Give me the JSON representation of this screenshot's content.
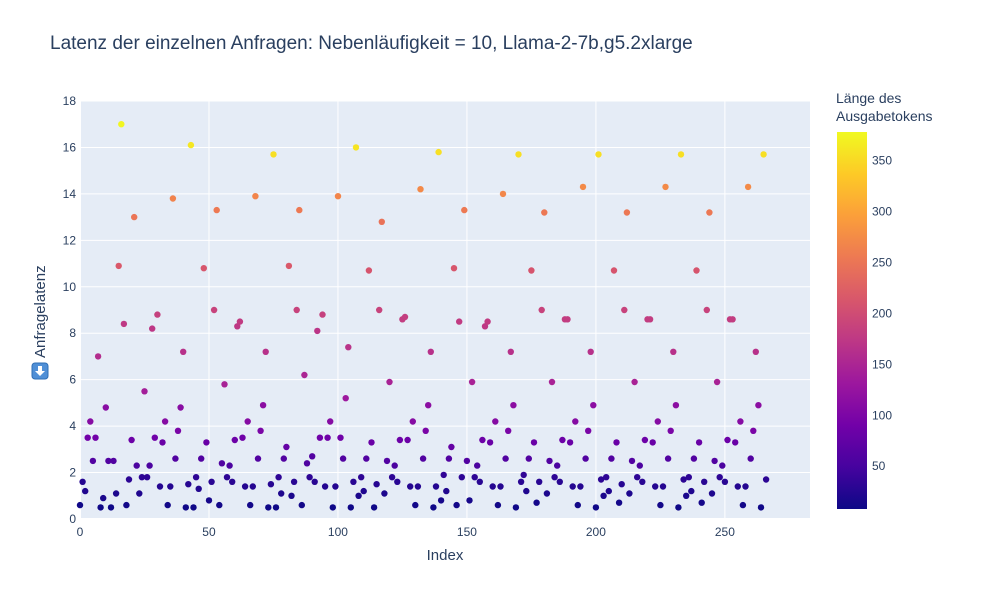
{
  "chart_data": {
    "type": "scatter",
    "title": "Latenz der einzelnen Anfragen: Nebenläufigkeit = 10, Llama-2-7b,g5.2xlarge",
    "xlabel": "Index",
    "ylabel": "Anfragelatenz",
    "ylabel_icon": "down-arrow-icon",
    "xlim": [
      0,
      283
    ],
    "ylim": [
      0,
      18
    ],
    "xticks": [
      "0",
      "50",
      "100",
      "150",
      "200",
      "250"
    ],
    "yticks": [
      "0",
      "2",
      "4",
      "6",
      "8",
      "10",
      "12",
      "14",
      "16",
      "18"
    ],
    "grid": true,
    "colorbar": {
      "title_lines": [
        "Länge des",
        "Ausgabetokens"
      ],
      "range": [
        8,
        378
      ],
      "ticks": [
        "50",
        "100",
        "150",
        "200",
        "250",
        "300",
        "350"
      ],
      "colorscale": [
        "#0d0887",
        "#46039f",
        "#7201a8",
        "#9c179e",
        "#bd3786",
        "#d8576b",
        "#ed7953",
        "#fb9f3a",
        "#fdca26",
        "#f0f921"
      ]
    },
    "points": [
      [
        0,
        0.6,
        10
      ],
      [
        1,
        1.6,
        25
      ],
      [
        2,
        1.2,
        22
      ],
      [
        3,
        3.5,
        90
      ],
      [
        4,
        4.2,
        110
      ],
      [
        5,
        2.5,
        60
      ],
      [
        6,
        3.5,
        90
      ],
      [
        7,
        7.0,
        160
      ],
      [
        8,
        0.5,
        10
      ],
      [
        9,
        0.9,
        18
      ],
      [
        10,
        4.8,
        112
      ],
      [
        11,
        2.5,
        60
      ],
      [
        12,
        0.5,
        10
      ],
      [
        13,
        2.5,
        60
      ],
      [
        14,
        1.1,
        20
      ],
      [
        15,
        10.9,
        215
      ],
      [
        16,
        17.0,
        375
      ],
      [
        17,
        8.4,
        175
      ],
      [
        18,
        0.6,
        12
      ],
      [
        19,
        1.7,
        30
      ],
      [
        20,
        3.4,
        85
      ],
      [
        21,
        13.0,
        250
      ],
      [
        22,
        2.3,
        55
      ],
      [
        23,
        1.1,
        22
      ],
      [
        24,
        1.8,
        32
      ],
      [
        25,
        5.5,
        140
      ],
      [
        26,
        1.8,
        32
      ],
      [
        27,
        2.3,
        55
      ],
      [
        28,
        8.2,
        172
      ],
      [
        29,
        3.5,
        88
      ],
      [
        30,
        8.8,
        185
      ],
      [
        31,
        1.4,
        25
      ],
      [
        32,
        3.3,
        82
      ],
      [
        33,
        4.2,
        110
      ],
      [
        34,
        0.6,
        12
      ],
      [
        35,
        1.4,
        25
      ],
      [
        36,
        13.8,
        265
      ],
      [
        37,
        2.6,
        60
      ],
      [
        38,
        3.8,
        98
      ],
      [
        39,
        4.8,
        112
      ],
      [
        40,
        7.2,
        165
      ],
      [
        41,
        0.5,
        10
      ],
      [
        42,
        1.5,
        27
      ],
      [
        43,
        16.1,
        362
      ],
      [
        44,
        0.5,
        10
      ],
      [
        45,
        1.8,
        32
      ],
      [
        46,
        1.3,
        24
      ],
      [
        47,
        2.6,
        60
      ],
      [
        48,
        10.8,
        212
      ],
      [
        49,
        3.3,
        82
      ],
      [
        50,
        0.8,
        15
      ],
      [
        51,
        1.6,
        28
      ],
      [
        52,
        9.0,
        188
      ],
      [
        53,
        13.3,
        255
      ],
      [
        54,
        0.6,
        12
      ],
      [
        55,
        2.4,
        58
      ],
      [
        56,
        5.8,
        145
      ],
      [
        57,
        1.8,
        32
      ],
      [
        58,
        2.3,
        55
      ],
      [
        59,
        1.6,
        28
      ],
      [
        60,
        3.4,
        85
      ],
      [
        61,
        8.3,
        174
      ],
      [
        62,
        8.5,
        178
      ],
      [
        63,
        3.5,
        88
      ],
      [
        64,
        1.4,
        25
      ],
      [
        65,
        4.2,
        110
      ],
      [
        66,
        0.6,
        12
      ],
      [
        67,
        1.4,
        25
      ],
      [
        68,
        13.9,
        268
      ],
      [
        69,
        2.6,
        60
      ],
      [
        70,
        3.8,
        98
      ],
      [
        71,
        4.9,
        115
      ],
      [
        72,
        7.2,
        165
      ],
      [
        73,
        0.5,
        10
      ],
      [
        74,
        1.5,
        27
      ],
      [
        75,
        15.7,
        355
      ],
      [
        76,
        0.5,
        10
      ],
      [
        77,
        1.8,
        32
      ],
      [
        78,
        1.1,
        20
      ],
      [
        79,
        2.6,
        60
      ],
      [
        80,
        3.1,
        78
      ],
      [
        81,
        10.9,
        215
      ],
      [
        82,
        1.0,
        18
      ],
      [
        83,
        1.6,
        28
      ],
      [
        84,
        9.0,
        188
      ],
      [
        85,
        13.3,
        255
      ],
      [
        86,
        0.6,
        12
      ],
      [
        87,
        6.2,
        150
      ],
      [
        88,
        2.4,
        58
      ],
      [
        89,
        1.8,
        32
      ],
      [
        90,
        2.7,
        62
      ],
      [
        91,
        1.6,
        28
      ],
      [
        92,
        8.1,
        170
      ],
      [
        93,
        3.5,
        88
      ],
      [
        94,
        8.8,
        185
      ],
      [
        95,
        1.4,
        25
      ],
      [
        96,
        3.5,
        88
      ],
      [
        97,
        4.2,
        110
      ],
      [
        98,
        0.5,
        10
      ],
      [
        99,
        1.4,
        25
      ],
      [
        100,
        13.9,
        268
      ],
      [
        101,
        3.5,
        88
      ],
      [
        102,
        2.6,
        60
      ],
      [
        103,
        5.2,
        132
      ],
      [
        104,
        7.4,
        168
      ],
      [
        105,
        0.5,
        10
      ],
      [
        106,
        1.6,
        28
      ],
      [
        107,
        16.0,
        360
      ],
      [
        108,
        1.0,
        18
      ],
      [
        109,
        1.8,
        32
      ],
      [
        110,
        1.2,
        22
      ],
      [
        111,
        2.6,
        60
      ],
      [
        112,
        10.7,
        210
      ],
      [
        113,
        3.3,
        82
      ],
      [
        114,
        0.5,
        10
      ],
      [
        115,
        1.5,
        27
      ],
      [
        116,
        9.0,
        188
      ],
      [
        117,
        12.8,
        246
      ],
      [
        118,
        1.1,
        20
      ],
      [
        119,
        2.5,
        60
      ],
      [
        120,
        5.9,
        146
      ],
      [
        121,
        1.8,
        32
      ],
      [
        122,
        2.3,
        55
      ],
      [
        123,
        1.6,
        28
      ],
      [
        124,
        3.4,
        85
      ],
      [
        125,
        8.6,
        180
      ],
      [
        126,
        8.7,
        182
      ],
      [
        127,
        3.4,
        85
      ],
      [
        128,
        1.4,
        25
      ],
      [
        129,
        4.2,
        110
      ],
      [
        130,
        0.6,
        12
      ],
      [
        131,
        1.4,
        25
      ],
      [
        132,
        14.2,
        272
      ],
      [
        133,
        2.6,
        60
      ],
      [
        134,
        3.8,
        98
      ],
      [
        135,
        4.9,
        115
      ],
      [
        136,
        7.2,
        165
      ],
      [
        137,
        0.5,
        10
      ],
      [
        138,
        1.4,
        25
      ],
      [
        139,
        15.8,
        356
      ],
      [
        140,
        0.8,
        15
      ],
      [
        141,
        1.9,
        34
      ],
      [
        142,
        1.2,
        22
      ],
      [
        143,
        2.6,
        60
      ],
      [
        144,
        3.1,
        78
      ],
      [
        145,
        10.8,
        212
      ],
      [
        146,
        0.6,
        12
      ],
      [
        147,
        8.5,
        178
      ],
      [
        148,
        1.8,
        32
      ],
      [
        149,
        13.3,
        255
      ],
      [
        150,
        2.5,
        60
      ],
      [
        151,
        0.8,
        15
      ],
      [
        152,
        5.9,
        146
      ],
      [
        153,
        1.8,
        32
      ],
      [
        154,
        2.3,
        55
      ],
      [
        155,
        1.6,
        28
      ],
      [
        156,
        3.4,
        85
      ],
      [
        157,
        8.3,
        174
      ],
      [
        158,
        8.5,
        178
      ],
      [
        159,
        3.3,
        82
      ],
      [
        160,
        1.4,
        25
      ],
      [
        161,
        4.2,
        110
      ],
      [
        162,
        0.6,
        12
      ],
      [
        163,
        1.4,
        25
      ],
      [
        164,
        14.0,
        270
      ],
      [
        165,
        2.6,
        60
      ],
      [
        166,
        3.8,
        98
      ],
      [
        167,
        7.2,
        165
      ],
      [
        168,
        4.9,
        115
      ],
      [
        169,
        0.5,
        10
      ],
      [
        170,
        15.7,
        355
      ],
      [
        171,
        1.6,
        28
      ],
      [
        172,
        1.9,
        34
      ],
      [
        173,
        1.2,
        22
      ],
      [
        174,
        2.6,
        60
      ],
      [
        175,
        10.7,
        210
      ],
      [
        176,
        3.3,
        82
      ],
      [
        177,
        0.7,
        13
      ],
      [
        178,
        1.6,
        28
      ],
      [
        179,
        9.0,
        188
      ],
      [
        180,
        13.2,
        253
      ],
      [
        181,
        1.1,
        20
      ],
      [
        182,
        2.5,
        60
      ],
      [
        183,
        5.9,
        146
      ],
      [
        184,
        1.8,
        32
      ],
      [
        185,
        2.3,
        55
      ],
      [
        186,
        1.6,
        28
      ],
      [
        187,
        3.4,
        85
      ],
      [
        188,
        8.6,
        180
      ],
      [
        189,
        8.6,
        180
      ],
      [
        190,
        3.3,
        82
      ],
      [
        191,
        1.4,
        25
      ],
      [
        192,
        4.2,
        110
      ],
      [
        193,
        0.6,
        12
      ],
      [
        194,
        1.4,
        25
      ],
      [
        195,
        14.3,
        273
      ],
      [
        196,
        2.6,
        60
      ],
      [
        197,
        3.8,
        98
      ],
      [
        198,
        7.2,
        165
      ],
      [
        199,
        4.9,
        115
      ],
      [
        200,
        0.5,
        10
      ],
      [
        201,
        15.7,
        355
      ],
      [
        202,
        1.7,
        30
      ],
      [
        203,
        1.0,
        18
      ],
      [
        204,
        1.8,
        32
      ],
      [
        205,
        1.2,
        22
      ],
      [
        206,
        2.6,
        60
      ],
      [
        207,
        10.7,
        210
      ],
      [
        208,
        3.3,
        82
      ],
      [
        209,
        0.7,
        13
      ],
      [
        210,
        1.5,
        27
      ],
      [
        211,
        9.0,
        188
      ],
      [
        212,
        13.2,
        253
      ],
      [
        213,
        1.1,
        20
      ],
      [
        214,
        2.5,
        60
      ],
      [
        215,
        5.9,
        146
      ],
      [
        216,
        1.8,
        32
      ],
      [
        217,
        2.3,
        55
      ],
      [
        218,
        1.6,
        28
      ],
      [
        219,
        3.4,
        85
      ],
      [
        220,
        8.6,
        180
      ],
      [
        221,
        8.6,
        180
      ],
      [
        222,
        3.3,
        82
      ],
      [
        223,
        1.4,
        25
      ],
      [
        224,
        4.2,
        110
      ],
      [
        225,
        0.6,
        12
      ],
      [
        226,
        1.4,
        25
      ],
      [
        227,
        14.3,
        273
      ],
      [
        228,
        2.6,
        60
      ],
      [
        229,
        3.8,
        98
      ],
      [
        230,
        7.2,
        165
      ],
      [
        231,
        4.9,
        115
      ],
      [
        232,
        0.5,
        10
      ],
      [
        233,
        15.7,
        355
      ],
      [
        234,
        1.7,
        30
      ],
      [
        235,
        1.0,
        18
      ],
      [
        236,
        1.8,
        32
      ],
      [
        237,
        1.2,
        22
      ],
      [
        238,
        2.6,
        60
      ],
      [
        239,
        10.7,
        210
      ],
      [
        240,
        3.3,
        82
      ],
      [
        241,
        0.7,
        13
      ],
      [
        242,
        1.6,
        28
      ],
      [
        243,
        9.0,
        188
      ],
      [
        244,
        13.2,
        253
      ],
      [
        245,
        1.1,
        20
      ],
      [
        246,
        2.5,
        60
      ],
      [
        247,
        5.9,
        146
      ],
      [
        248,
        1.8,
        32
      ],
      [
        249,
        2.3,
        55
      ],
      [
        250,
        1.6,
        28
      ],
      [
        251,
        3.4,
        85
      ],
      [
        252,
        8.6,
        180
      ],
      [
        253,
        8.6,
        180
      ],
      [
        254,
        3.3,
        82
      ],
      [
        255,
        1.4,
        25
      ],
      [
        256,
        4.2,
        110
      ],
      [
        257,
        0.6,
        12
      ],
      [
        258,
        1.4,
        25
      ],
      [
        259,
        14.3,
        273
      ],
      [
        260,
        2.6,
        60
      ],
      [
        261,
        3.8,
        98
      ],
      [
        262,
        7.2,
        165
      ],
      [
        263,
        4.9,
        115
      ],
      [
        264,
        0.5,
        10
      ],
      [
        265,
        15.7,
        355
      ],
      [
        266,
        1.7,
        30
      ]
    ]
  }
}
